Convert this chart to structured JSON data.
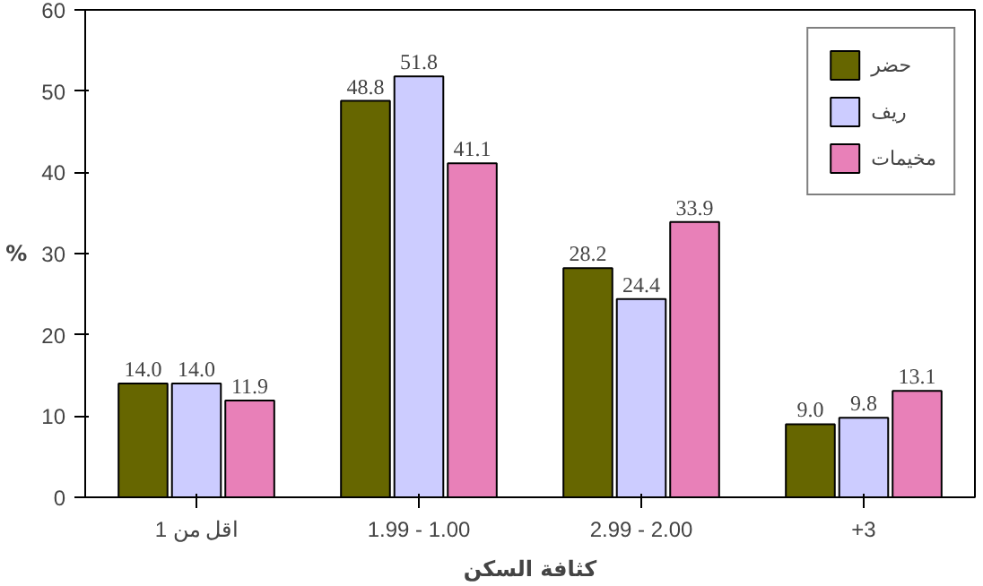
{
  "chart_data": {
    "type": "bar",
    "xlabel": "كثافة السكن",
    "ylabel": "%",
    "categories": [
      "اقل من 1",
      "1.99 - 1.00",
      "2.99 - 2.00",
      "+3"
    ],
    "series": [
      {
        "name": "حضر",
        "color": "#666600",
        "values": [
          14.0,
          48.8,
          28.2,
          9.0
        ],
        "value_labels": [
          "14.0",
          "48.8",
          "28.2",
          "9.0"
        ]
      },
      {
        "name": "ريف",
        "color": "#ccccff",
        "values": [
          14.0,
          51.8,
          24.4,
          9.8
        ],
        "value_labels": [
          "14.0",
          "51.8",
          "24.4",
          "9.8"
        ]
      },
      {
        "name": "مخيمات",
        "color": "#e880b8",
        "values": [
          11.9,
          41.1,
          33.9,
          13.1
        ],
        "value_labels": [
          "11.9",
          "41.1",
          "33.9",
          "13.1"
        ]
      }
    ],
    "ylim": [
      0,
      60
    ],
    "yticks": [
      0,
      10,
      20,
      30,
      40,
      50,
      60
    ],
    "grid": false,
    "legend": "top right"
  }
}
